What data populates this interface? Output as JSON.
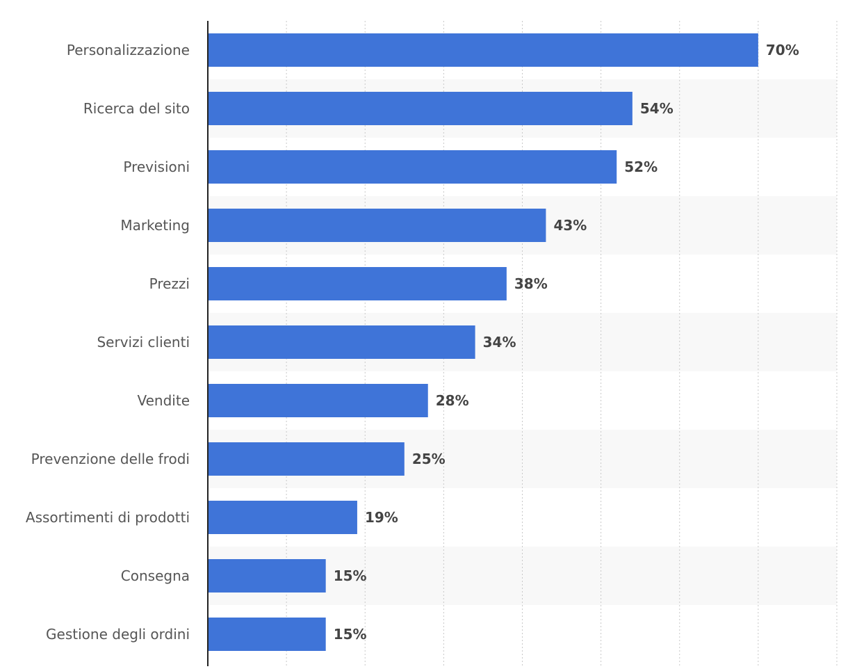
{
  "chart_data": {
    "type": "bar",
    "orientation": "horizontal",
    "categories": [
      "Personalizzazione",
      "Ricerca del sito",
      "Previsioni",
      "Marketing",
      "Prezzi",
      "Servizi clienti",
      "Vendite",
      "Prevenzione delle frodi",
      "Assortimenti di prodotti",
      "Consegna",
      "Gestione degli ordini"
    ],
    "values": [
      70,
      54,
      52,
      43,
      38,
      34,
      28,
      25,
      19,
      15,
      15
    ],
    "value_labels": [
      "70%",
      "54%",
      "52%",
      "43%",
      "38%",
      "34%",
      "28%",
      "25%",
      "19%",
      "15%",
      "15%"
    ],
    "title": "",
    "xlabel": "",
    "ylabel": "",
    "xlim": [
      0,
      80
    ],
    "grid": true,
    "bar_color": "#3f74d8",
    "band_color": "#f8f8f8",
    "legend": "none"
  }
}
